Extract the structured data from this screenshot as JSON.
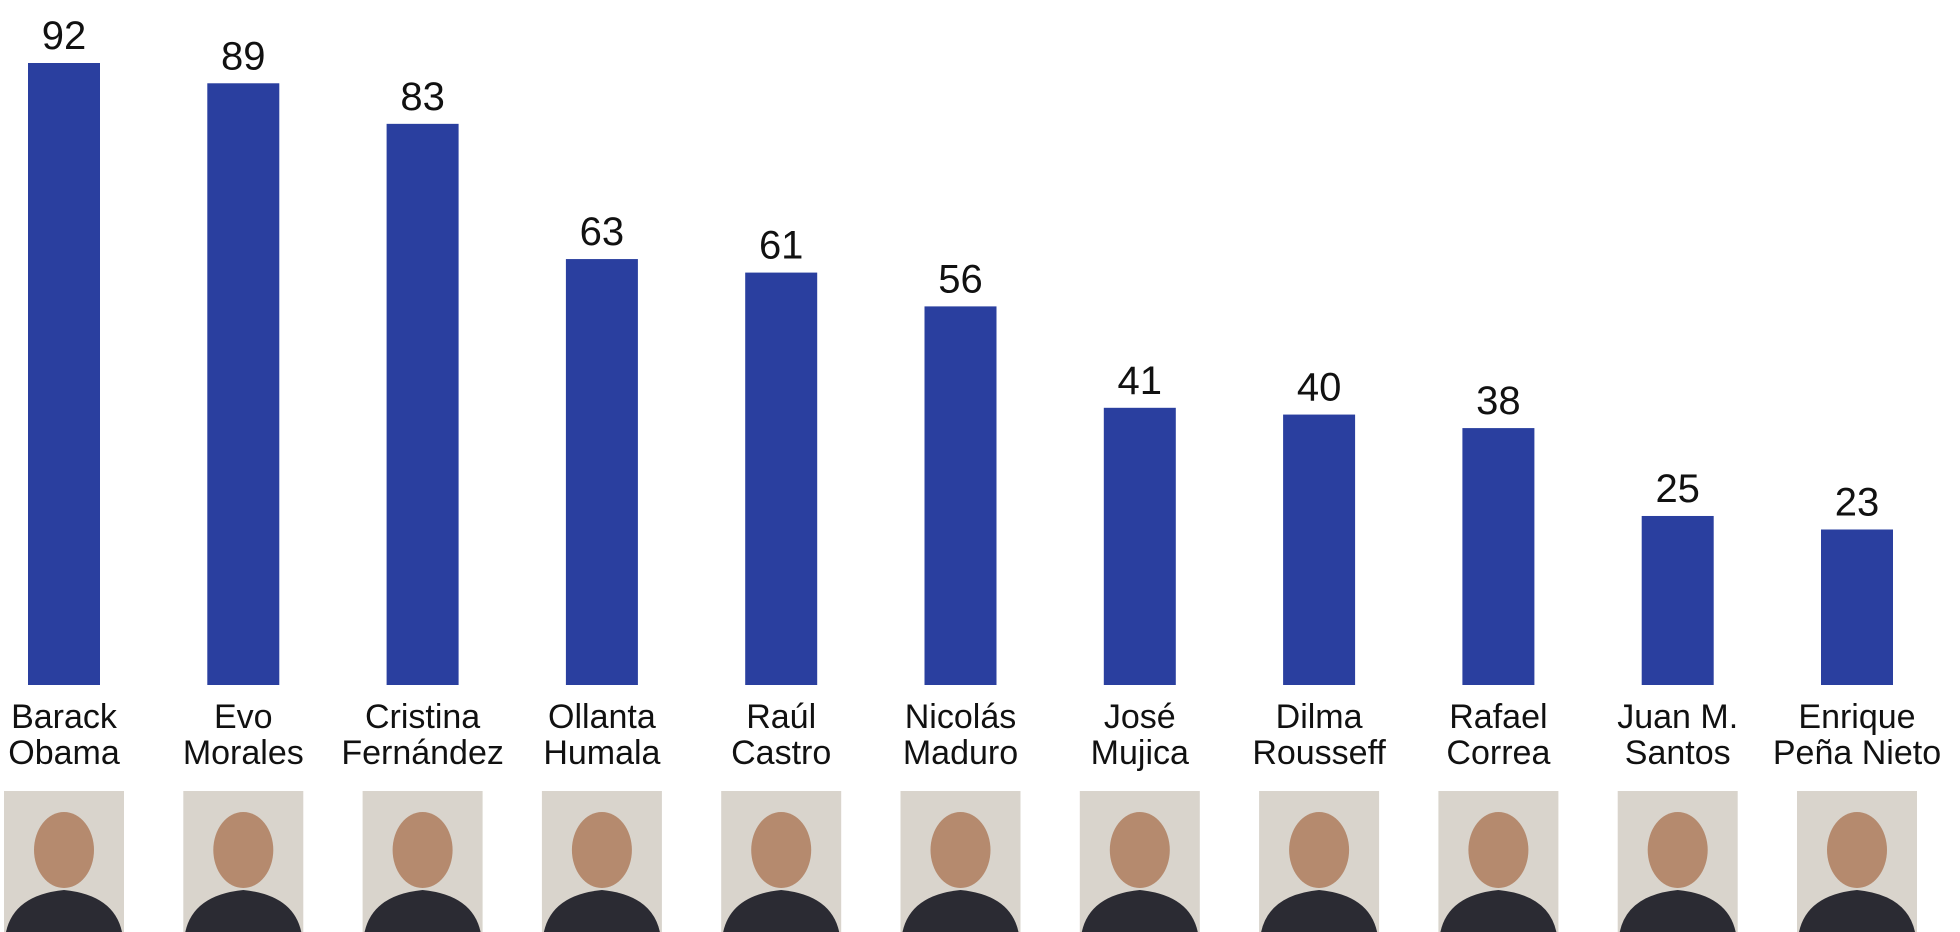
{
  "chart_data": {
    "type": "bar",
    "categories": [
      [
        "Barack",
        "Obama"
      ],
      [
        "Evo",
        "Morales"
      ],
      [
        "Cristina",
        "Fernández"
      ],
      [
        "Ollanta",
        "Humala"
      ],
      [
        "Raúl",
        "Castro"
      ],
      [
        "Nicolás",
        "Maduro"
      ],
      [
        "José",
        "Mujica"
      ],
      [
        "Dilma",
        "Rousseff"
      ],
      [
        "Rafael",
        "Correa"
      ],
      [
        "Juan M.",
        "Santos"
      ],
      [
        "Enrique",
        "Peña Nieto"
      ]
    ],
    "values": [
      92,
      89,
      83,
      63,
      61,
      56,
      41,
      40,
      38,
      25,
      23
    ],
    "color": "#2a3f9f"
  }
}
